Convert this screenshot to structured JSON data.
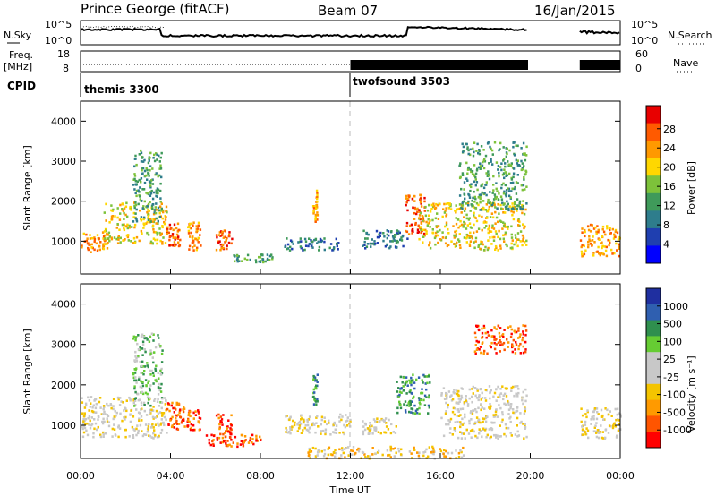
{
  "header": {
    "station": "Prince George (fitACF)",
    "beam": "Beam 07",
    "date": "16/Jan/2015"
  },
  "top_panels": {
    "nsky_label": "N.Sky",
    "nsearch_label": "N.Search",
    "nsky_ticks": [
      "10^5",
      "10^0"
    ],
    "nsearch_ticks": [
      "10^5",
      "10^0"
    ],
    "freq_label_1": "Freq.",
    "freq_label_2": "[MHz]",
    "freq_ticks": [
      "18",
      "8"
    ],
    "nave_label": "Nave",
    "nave_ticks": [
      "60",
      "0"
    ],
    "cpid_label": "CPID",
    "cpid_modes": [
      {
        "name": "themis 3300",
        "start_hour": 0
      },
      {
        "name": "twofsound 3503",
        "start_hour": 12
      }
    ]
  },
  "x_axis": {
    "label": "Time UT",
    "ticks": [
      "00:00",
      "04:00",
      "08:00",
      "12:00",
      "16:00",
      "20:00",
      "00:00"
    ],
    "range_hours": [
      0,
      24
    ]
  },
  "colors": {
    "power_scale": [
      "#0000ff",
      "#1f3fb0",
      "#2e7d8c",
      "#3f9a5a",
      "#7dc23a",
      "#ffd700",
      "#ff9900",
      "#ff5a00",
      "#e80000"
    ],
    "velocity_scale": [
      "#ff0000",
      "#ff5500",
      "#ff9a00",
      "#f4c400",
      "#c8c8c8",
      "#c8c8c8",
      "#66cc33",
      "#2f8f4e",
      "#2f5fb0",
      "#1f2fa0"
    ]
  },
  "chart_data": [
    {
      "type": "heatmap",
      "title": "",
      "xlabel": "",
      "ylabel": "Slant Range [km]",
      "xlim": [
        0,
        24
      ],
      "ylim": [
        180,
        4500
      ],
      "yticks": [
        "1000",
        "2000",
        "3000",
        "4000"
      ],
      "colorbar_label": "Power [dB]",
      "colorbar_ticks": [
        "4",
        "8",
        "12",
        "16",
        "20",
        "24",
        "28"
      ],
      "scatter_regions": [
        {
          "t": [
            0.0,
            1.2
          ],
          "range_km": [
            750,
            1250
          ],
          "level": 6
        },
        {
          "t": [
            1.0,
            3.8
          ],
          "range_km": [
            950,
            2000
          ],
          "level": 5
        },
        {
          "t": [
            2.3,
            3.6
          ],
          "range_km": [
            1500,
            3300
          ],
          "level": 3
        },
        {
          "t": [
            3.8,
            4.4
          ],
          "range_km": [
            900,
            1500
          ],
          "level": 7
        },
        {
          "t": [
            4.7,
            5.3
          ],
          "range_km": [
            800,
            1500
          ],
          "level": 6
        },
        {
          "t": [
            6.0,
            6.7
          ],
          "range_km": [
            800,
            1300
          ],
          "level": 7
        },
        {
          "t": [
            6.7,
            8.5
          ],
          "range_km": [
            500,
            700
          ],
          "level": 3
        },
        {
          "t": [
            9.0,
            11.5
          ],
          "range_km": [
            800,
            1100
          ],
          "level": 2
        },
        {
          "t": [
            10.3,
            10.5
          ],
          "range_km": [
            1500,
            2300
          ],
          "level": 6
        },
        {
          "t": [
            12.5,
            14.5
          ],
          "range_km": [
            850,
            1300
          ],
          "level": 2
        },
        {
          "t": [
            14.4,
            15.3
          ],
          "range_km": [
            1200,
            2200
          ],
          "level": 7
        },
        {
          "t": [
            15.0,
            19.8
          ],
          "range_km": [
            800,
            2000
          ],
          "level": 5
        },
        {
          "t": [
            16.8,
            19.8
          ],
          "range_km": [
            1800,
            3500
          ],
          "level": 3
        },
        {
          "t": [
            22.2,
            24.0
          ],
          "range_km": [
            650,
            1450
          ],
          "level": 6
        }
      ]
    },
    {
      "type": "heatmap",
      "title": "",
      "xlabel": "Time UT",
      "ylabel": "Slant Range [km]",
      "xlim": [
        0,
        24
      ],
      "ylim": [
        180,
        4500
      ],
      "yticks": [
        "1000",
        "2000",
        "3000",
        "4000"
      ],
      "colorbar_label": "Velocity [m s⁻¹]",
      "colorbar_ticks": [
        "1000",
        "500",
        "100",
        "25",
        "-25",
        "-100",
        "-500",
        "-1000"
      ],
      "scatter_regions": [
        {
          "t": [
            0.0,
            3.8
          ],
          "range_km": [
            700,
            1750
          ],
          "level": 4
        },
        {
          "t": [
            2.3,
            3.6
          ],
          "range_km": [
            1500,
            3300
          ],
          "level": 6
        },
        {
          "t": [
            3.8,
            4.6
          ],
          "range_km": [
            900,
            1600
          ],
          "level": 1
        },
        {
          "t": [
            4.7,
            5.3
          ],
          "range_km": [
            900,
            1400
          ],
          "level": 1
        },
        {
          "t": [
            6.0,
            6.7
          ],
          "range_km": [
            800,
            1300
          ],
          "level": 1
        },
        {
          "t": [
            5.5,
            8.0
          ],
          "range_km": [
            500,
            800
          ],
          "level": 1
        },
        {
          "t": [
            9.0,
            12.0
          ],
          "range_km": [
            800,
            1300
          ],
          "level": 4
        },
        {
          "t": [
            10.3,
            10.5
          ],
          "range_km": [
            1500,
            2300
          ],
          "level": 7
        },
        {
          "t": [
            12.5,
            14.0
          ],
          "range_km": [
            800,
            1200
          ],
          "level": 4
        },
        {
          "t": [
            14.0,
            15.5
          ],
          "range_km": [
            1300,
            2300
          ],
          "level": 7
        },
        {
          "t": [
            16.0,
            19.8
          ],
          "range_km": [
            700,
            2000
          ],
          "level": 4
        },
        {
          "t": [
            17.5,
            19.8
          ],
          "range_km": [
            2800,
            3500
          ],
          "level": 1
        },
        {
          "t": [
            22.2,
            24.0
          ],
          "range_km": [
            700,
            1450
          ],
          "level": 4
        },
        {
          "t": [
            10.0,
            17.0
          ],
          "range_km": [
            200,
            500
          ],
          "level": 3
        }
      ]
    }
  ]
}
